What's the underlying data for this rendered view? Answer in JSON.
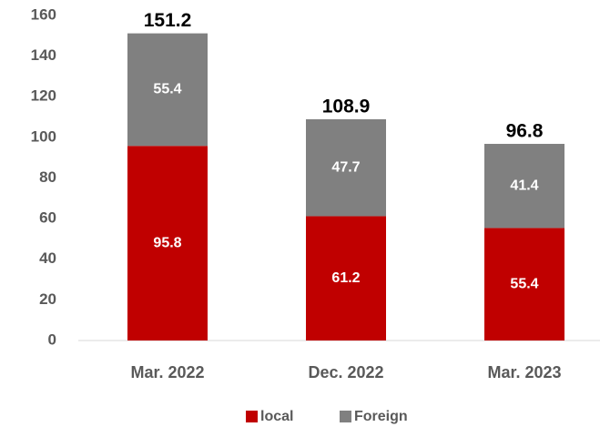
{
  "chart_data": {
    "type": "stacked_bar",
    "categories": [
      "Mar. 2022",
      "Dec. 2022",
      "Mar. 2023"
    ],
    "series": [
      {
        "name": "local",
        "color": "#c00000",
        "values": [
          95.8,
          61.2,
          55.4
        ]
      },
      {
        "name": "Foreign",
        "color": "#808080",
        "values": [
          55.4,
          47.7,
          41.4
        ]
      }
    ],
    "totals": [
      151.2,
      108.9,
      96.8
    ],
    "ylim": [
      0,
      160
    ],
    "yticks": [
      0,
      20,
      40,
      60,
      80,
      100,
      120,
      140,
      160
    ],
    "grid": false,
    "legend": "bottom"
  }
}
